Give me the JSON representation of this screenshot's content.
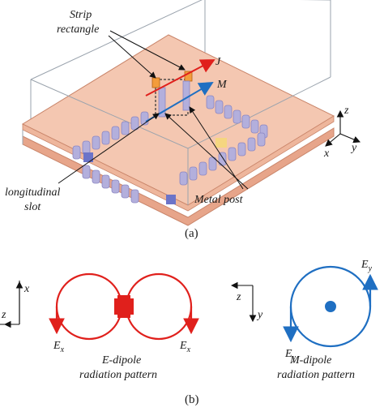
{
  "panel_a": {
    "caption": "(a)",
    "labels": {
      "strip_rectangle_1": "Strip",
      "strip_rectangle_2": "rectangle",
      "current_j": "J",
      "current_m": "M",
      "slot_1": "longitudinal",
      "slot_2": "slot",
      "metal_post": "Metal post"
    },
    "axes": {
      "z": "z",
      "x": "x",
      "y": "y"
    }
  },
  "panel_b": {
    "caption": "(b)",
    "e_dipole": {
      "axis_x": "x",
      "axis_z": "z",
      "field_left": "E",
      "field_left_sub": "x",
      "field_right": "E",
      "field_right_sub": "x",
      "title_1": "E-dipole",
      "title_2": "radiation pattern"
    },
    "m_dipole": {
      "axis_z": "z",
      "axis_y": "y",
      "field_top": "E",
      "field_top_sub": "y",
      "field_bottom": "E",
      "field_bottom_sub": "y",
      "title_1": "M-dipole",
      "title_2": "radiation pattern"
    }
  },
  "colors": {
    "substrate": "#f4c7b1",
    "substrate_edge": "#c9856a",
    "post": "#a9a6d6",
    "e_pattern": "#e0201c",
    "m_pattern": "#1f6fc2",
    "box_line": "#9aa3ad"
  }
}
